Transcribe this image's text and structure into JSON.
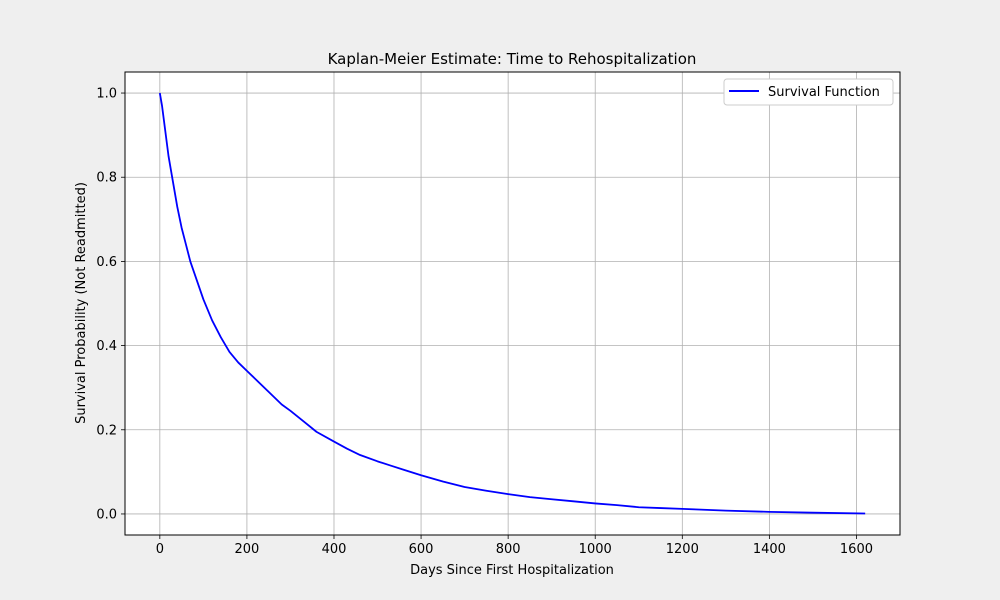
{
  "chart_data": {
    "type": "line",
    "title": "Kaplan-Meier Estimate: Time to Rehospitalization",
    "xlabel": "Days Since First Hospitalization",
    "ylabel": "Survival Probability (Not Readmitted)",
    "xlim": [
      -80,
      1700
    ],
    "ylim": [
      -0.05,
      1.05
    ],
    "xticks": [
      "0",
      "200",
      "400",
      "600",
      "800",
      "1000",
      "1200",
      "1400",
      "1600"
    ],
    "yticks": [
      "0.0",
      "0.2",
      "0.4",
      "0.6",
      "0.8",
      "1.0"
    ],
    "grid": true,
    "legend": "top-right",
    "series": [
      {
        "name": "Survival Function",
        "color": "#0000ff",
        "x": [
          0,
          5,
          10,
          20,
          30,
          40,
          50,
          60,
          70,
          80,
          100,
          120,
          140,
          160,
          180,
          200,
          220,
          250,
          280,
          300,
          330,
          360,
          400,
          430,
          460,
          500,
          530,
          560,
          600,
          650,
          700,
          750,
          800,
          850,
          900,
          950,
          1000,
          1050,
          1100,
          1150,
          1200,
          1300,
          1400,
          1500,
          1620
        ],
        "y": [
          1.0,
          0.97,
          0.93,
          0.85,
          0.79,
          0.73,
          0.68,
          0.64,
          0.6,
          0.57,
          0.51,
          0.46,
          0.42,
          0.385,
          0.36,
          0.34,
          0.32,
          0.29,
          0.26,
          0.245,
          0.22,
          0.195,
          0.172,
          0.155,
          0.14,
          0.125,
          0.115,
          0.105,
          0.092,
          0.077,
          0.064,
          0.055,
          0.047,
          0.04,
          0.035,
          0.03,
          0.025,
          0.021,
          0.016,
          0.014,
          0.012,
          0.008,
          0.005,
          0.003,
          0.001
        ]
      }
    ]
  }
}
